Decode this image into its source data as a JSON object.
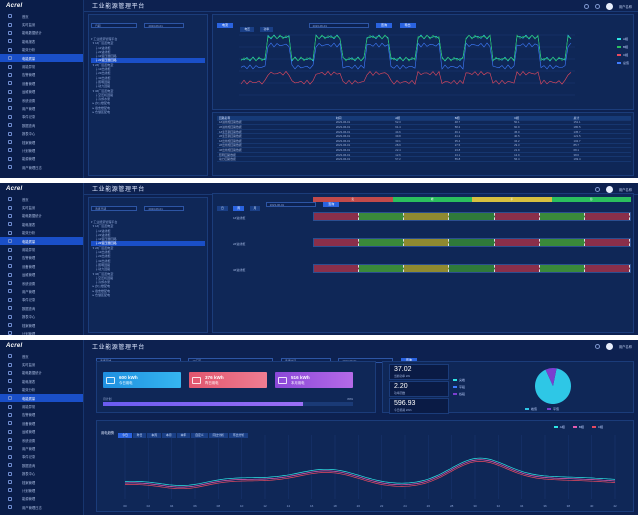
{
  "logo_text": "Acrel",
  "page_title": "工业能源管理平台",
  "user_name": "用户名称",
  "sidebar_items": [
    "首页",
    "实时监测",
    "能耗数据统计",
    "能耗报表",
    "能效分析",
    "电能质量",
    "用能异常",
    "告警管理",
    "设备管理",
    "运维管理",
    "系统设置",
    "用户管理",
    "事件记录",
    "数据查询",
    "报表中心",
    "档案管理",
    "计划管理",
    "能源管理",
    "用户管理日志"
  ],
  "sidebar_active": 5,
  "tree": [
    "▾ 工业能源管理平台",
    "  ▾ 1#厂区配电室",
    "     ├ 1#进线柜",
    "     ├ 2#进线柜",
    "     ├ 1#变压器回路",
    "     ├ 2#变压器回路",
    "  ▾ 2#厂区配电室",
    "     ├ 1#出线柜",
    "     ├ 2#出线柜",
    "     ├ 3#出线柜",
    "     ├ 照明回路",
    "     ├ 动力回路",
    "  ▾ 3#厂区配电室",
    "     ├ 空压机回路",
    "     ├ 冷却水泵",
    "  ▸ 办公楼配电",
    "  ▸ 宿舍楼配电",
    "  ▸ 仓储区配电"
  ],
  "tree_selected": 5,
  "s1": {
    "tabs": [
      "电流",
      "电压",
      "功率"
    ],
    "filters": [
      "日期",
      "2023-06-01",
      "查询",
      "导出"
    ],
    "chart_legend": [
      "A相",
      "B相",
      "C相",
      "总值"
    ],
    "table_headers": [
      "回路名称",
      "时间",
      "A相",
      "B相",
      "C相",
      "总计"
    ],
    "table_rows": [
      [
        "1#进线柜回路数据",
        "2023-06-01",
        "52.3",
        "48.7",
        "50.1",
        "151.1"
      ],
      [
        "2#进线柜回路数据",
        "2023-06-01",
        "61.4",
        "58.2",
        "60.9",
        "180.5"
      ],
      [
        "1#变压器回路数据",
        "2023-06-01",
        "44.6",
        "46.1",
        "45.0",
        "135.7"
      ],
      [
        "2#变压器回路数据",
        "2023-06-01",
        "39.8",
        "41.2",
        "40.5",
        "121.5"
      ],
      [
        "1#出线柜回路数据",
        "2023-06-01",
        "33.1",
        "35.4",
        "34.2",
        "102.7"
      ],
      [
        "2#出线柜回路数据",
        "2023-06-01",
        "28.9",
        "27.5",
        "29.3",
        "85.7"
      ],
      [
        "3#出线柜回路数据",
        "2023-06-01",
        "22.4",
        "23.8",
        "21.9",
        "68.1"
      ],
      [
        "照明回路数据",
        "2023-06-01",
        "12.6",
        "13.1",
        "12.9",
        "38.6"
      ],
      [
        "动力回路数据",
        "2023-06-01",
        "57.2",
        "55.8",
        "56.4",
        "169.4"
      ]
    ]
  },
  "s2": {
    "tabs": [
      "日",
      "周",
      "月"
    ],
    "filters": [
      "选择日期",
      "2023-06-01",
      "查询"
    ],
    "header_bands": [
      "尖",
      "峰",
      "平",
      "谷"
    ],
    "rows": [
      "1#进线柜",
      "2#进线柜",
      "3#进线柜"
    ]
  },
  "s3": {
    "filters": [
      "选择区域",
      "1#厂区",
      "选择时间",
      "2023-06-01",
      "查询"
    ],
    "cards": [
      {
        "value": "600 kWh",
        "label": "今日用电"
      },
      {
        "value": "376 kWh",
        "label": "昨日用电"
      },
      {
        "value": "516 kWh",
        "label": "本月用电"
      }
    ],
    "progress_label_left": "月计划",
    "progress_label_right": "80%",
    "progress_value": 0.8,
    "stats": [
      {
        "value": "37.02",
        "label": "当前功率 kW"
      },
      {
        "value": "2.20",
        "label": "功率因数"
      },
      {
        "value": "596.93",
        "label": "今日能耗 kWh"
      }
    ],
    "stat_legend": [
      "尖峰",
      "平段",
      "谷段"
    ],
    "pie": {
      "slices": [
        {
          "name": "峰",
          "value": 0.9,
          "color": "#2ec7e6"
        },
        {
          "name": "平",
          "value": 0.1,
          "color": "#7b3fd0"
        }
      ]
    },
    "pie_legend": [
      "峰值",
      "平值"
    ],
    "trend_title": "用电趋势",
    "trend_tabs": [
      "今日",
      "昨日",
      "本周",
      "本月",
      "本年",
      "自定义",
      "同比分析",
      "环比分析"
    ],
    "trend_legend": [
      "A相",
      "B相",
      "C相"
    ],
    "trend_x": [
      "00",
      "02",
      "04",
      "06",
      "08",
      "10",
      "12",
      "14",
      "16",
      "18",
      "20",
      "22",
      "24",
      "26",
      "28",
      "30",
      "32",
      "34",
      "36",
      "38",
      "40",
      "42"
    ]
  },
  "colors": {
    "accent": "#2a63e0",
    "bg": "#0d2150",
    "cyan": "#2ee6e6",
    "red": "#e84a5f",
    "green": "#2bbf5e",
    "pink": "#e55cb0",
    "blue": "#3f7cff"
  }
}
